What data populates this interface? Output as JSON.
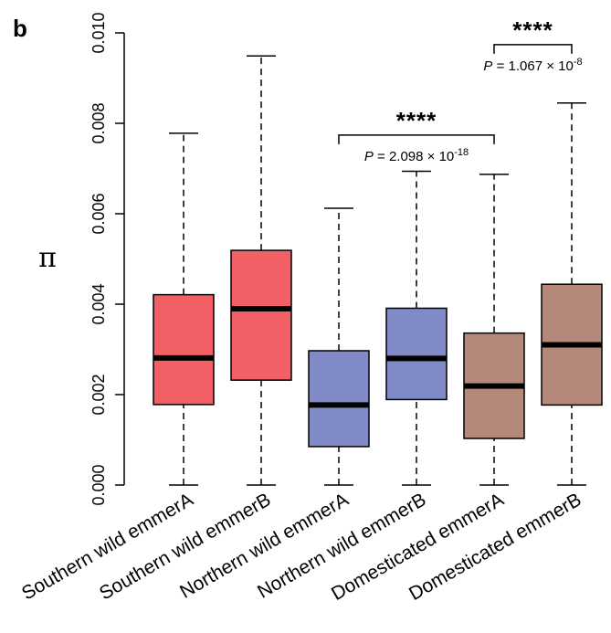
{
  "chart_data": {
    "type": "box",
    "panel_label": "b",
    "ylabel": "π",
    "ylim": [
      0,
      0.01
    ],
    "yticks": [
      "0.000",
      "0.002",
      "0.004",
      "0.006",
      "0.008",
      "0.010"
    ],
    "ytick_values": [
      0,
      0.002,
      0.004,
      0.006,
      0.008,
      0.01
    ],
    "categories": [
      "Southern wild emmerA",
      "Southern wild emmerB",
      "Northern wild emmerA",
      "Northern wild emmerB",
      "Domesticated emmerA",
      "Domesticated emmerB"
    ],
    "boxes": [
      {
        "min": 0.0,
        "q1": 0.00178,
        "median": 0.00281,
        "q3": 0.00421,
        "max": 0.00778,
        "color": "#f26065"
      },
      {
        "min": 0.0,
        "q1": 0.00232,
        "median": 0.0039,
        "q3": 0.00519,
        "max": 0.00949,
        "color": "#f26065"
      },
      {
        "min": 0.0,
        "q1": 0.00085,
        "median": 0.00177,
        "q3": 0.00297,
        "max": 0.00612,
        "color": "#7f8ac6"
      },
      {
        "min": 0.0,
        "q1": 0.00189,
        "median": 0.0028,
        "q3": 0.00391,
        "max": 0.00694,
        "color": "#7f8ac6"
      },
      {
        "min": 0.0,
        "q1": 0.00103,
        "median": 0.00219,
        "q3": 0.00336,
        "max": 0.00687,
        "color": "#b5897a"
      },
      {
        "min": 0.0,
        "q1": 0.00177,
        "median": 0.0031,
        "q3": 0.00444,
        "max": 0.00845,
        "color": "#b5897a"
      }
    ],
    "comparisons": [
      {
        "from": 2,
        "to": 4,
        "y": 0.00774,
        "stars": "****",
        "p_label": "P",
        "p_text": "= 2.098 × 10",
        "p_exp": "-18"
      },
      {
        "from": 4,
        "to": 5,
        "y": 0.00974,
        "stars": "****",
        "p_label": "P",
        "p_text": "= 1.067 × 10",
        "p_exp": "-8"
      }
    ]
  }
}
